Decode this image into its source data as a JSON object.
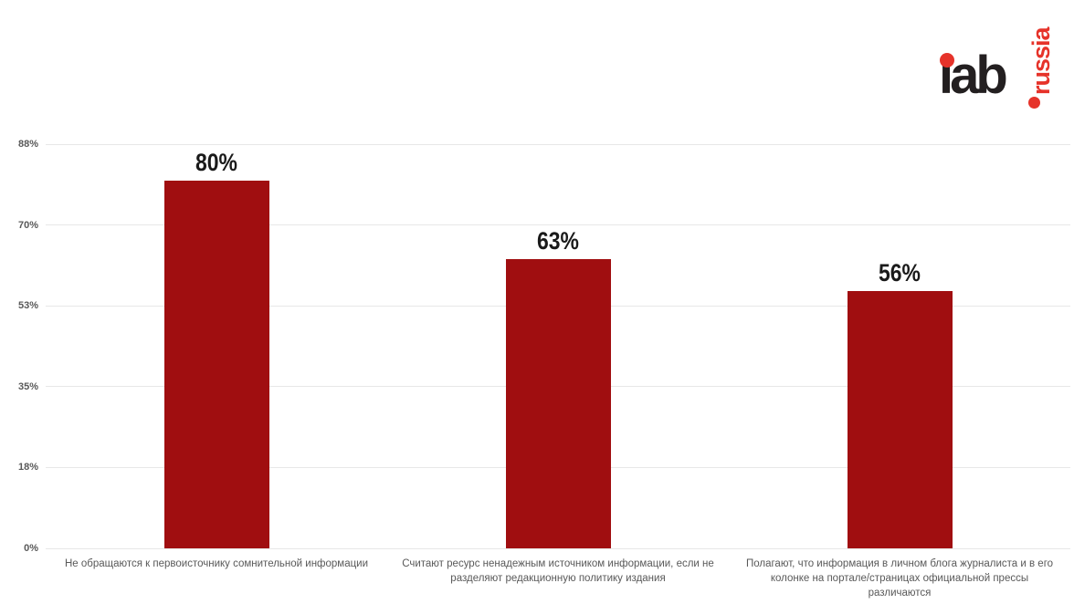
{
  "logo": {
    "text": "iab",
    "vertical_text": "russia",
    "black_color": "#231f20",
    "red_color": "#e6332a"
  },
  "chart_data": {
    "type": "bar",
    "title": "",
    "xlabel": "",
    "ylabel": "",
    "categories": [
      "Не обращаются к первоисточнику сомнительной информации",
      "Считают ресурс ненадежным источником информации, если не разделяют редакционную политику издания",
      "Полагают, что информация в личном блога журналиста и в его колонке на портале/страницах официальной прессы различаются"
    ],
    "values": [
      80,
      63,
      56
    ],
    "data_labels": [
      "80%",
      "63%",
      "56%"
    ],
    "y_ticks": [
      "0%",
      "18%",
      "35%",
      "53%",
      "70%",
      "88%"
    ],
    "ylim": [
      0,
      88
    ],
    "grid": true,
    "legend_position": "none",
    "bar_color": "#a00e10",
    "gridline_color": "#e7e7e7",
    "axis_label_color": "#595959"
  }
}
